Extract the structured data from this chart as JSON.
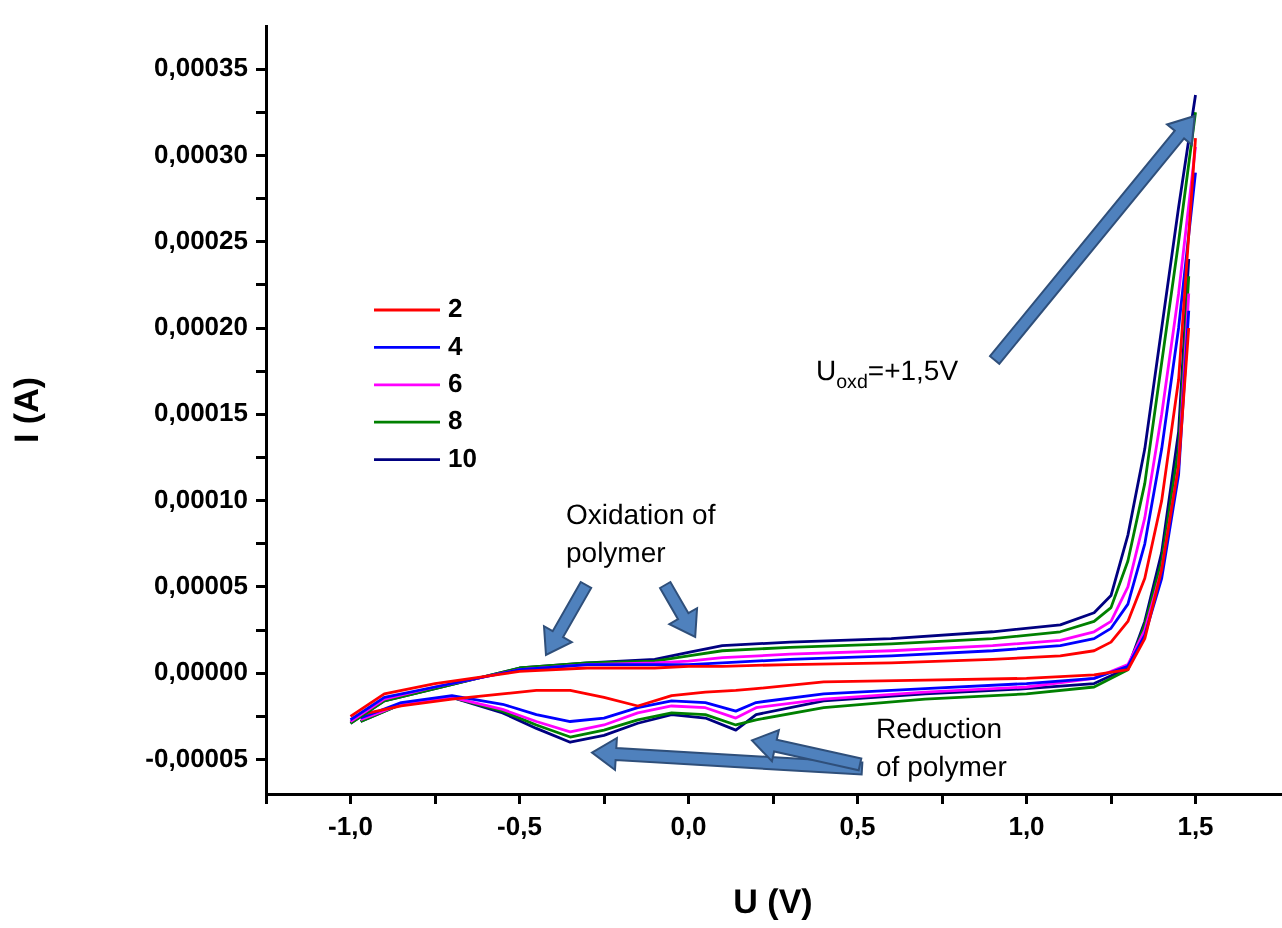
{
  "chart_data": {
    "type": "line",
    "xlabel": "U (V)",
    "ylabel": "I (A)",
    "annotations": [
      "Oxidation of polymer",
      "Reduction of polymer",
      "U$_{oxd}$=+1,5V"
    ],
    "xlim": [
      -1.25,
      1.75
    ],
    "xticks": [
      {
        "value": -1.25,
        "label": null
      },
      {
        "value": -1,
        "label": "-1,0"
      },
      {
        "value": -0.75,
        "label": null
      },
      {
        "value": -0.5,
        "label": "-0,5"
      },
      {
        "value": -0.25,
        "label": null
      },
      {
        "value": 0,
        "label": "0,0"
      },
      {
        "value": 0.25,
        "label": null
      },
      {
        "value": 0.5,
        "label": "0,5"
      },
      {
        "value": 0.75,
        "label": null
      },
      {
        "value": 1,
        "label": "1,0"
      },
      {
        "value": 1.25,
        "label": null
      },
      {
        "value": 1.5,
        "label": "1,5"
      }
    ],
    "ylim": [
      -7e-05,
      0.000375
    ],
    "yticks": [
      {
        "value": -5e-05,
        "label": "-0,00005"
      },
      {
        "value": -2.5e-05,
        "label": null
      },
      {
        "value": 0,
        "label": "0,00000"
      },
      {
        "value": 2.5e-05,
        "label": null
      },
      {
        "value": 5e-05,
        "label": "0,00005"
      },
      {
        "value": 7.5e-05,
        "label": null
      },
      {
        "value": 0.0001,
        "label": "0,00010"
      },
      {
        "value": 0.000125,
        "label": null
      },
      {
        "value": 0.00015,
        "label": "0,00015"
      },
      {
        "value": 0.000175,
        "label": null
      },
      {
        "value": 0.0002,
        "label": "0,00020"
      },
      {
        "value": 0.000225,
        "label": null
      },
      {
        "value": 0.00025,
        "label": "0,00025"
      },
      {
        "value": 0.000275,
        "label": null
      },
      {
        "value": 0.0003,
        "label": "0,00030"
      },
      {
        "value": 0.000325,
        "label": null
      },
      {
        "value": 0.00035,
        "label": "0,00035"
      }
    ],
    "grid": false,
    "legend": "left",
    "marker": "none",
    "line_style": "solid",
    "series": [
      {
        "name": "2",
        "color": "#ff0000",
        "x": [
          -1.0,
          -0.9,
          -0.75,
          -0.5,
          -0.3,
          -0.1,
          0.0,
          0.1,
          0.3,
          0.6,
          0.9,
          1.1,
          1.2,
          1.25,
          1.3,
          1.35,
          1.4,
          1.45,
          1.5
        ],
        "values": [
          -2.5e-05,
          -1.2e-05,
          -6e-06,
          1e-06,
          3e-06,
          3e-06,
          4e-06,
          4e-06,
          5e-06,
          6e-06,
          8e-06,
          1e-05,
          1.3e-05,
          1.8e-05,
          3e-05,
          5.5e-05,
          0.0001,
          0.00017,
          0.00031
        ]
      },
      {
        "name": "4",
        "color": "#0000ff",
        "x": [
          -1.0,
          -0.9,
          -0.75,
          -0.5,
          -0.3,
          -0.1,
          0.0,
          0.1,
          0.3,
          0.6,
          0.9,
          1.1,
          1.2,
          1.25,
          1.3,
          1.35,
          1.4,
          1.45,
          1.5
        ],
        "values": [
          -2.7e-05,
          -1.4e-05,
          -8e-06,
          2e-06,
          5e-06,
          5e-06,
          5e-06,
          6e-06,
          8e-06,
          1e-05,
          1.3e-05,
          1.6e-05,
          2e-05,
          2.6e-05,
          4e-05,
          7.5e-05,
          0.00013,
          0.0002,
          0.00029
        ]
      },
      {
        "name": "6",
        "color": "#ff00ff",
        "x": [
          -1.0,
          -0.9,
          -0.75,
          -0.5,
          -0.3,
          -0.1,
          0.0,
          0.1,
          0.3,
          0.6,
          0.9,
          1.1,
          1.2,
          1.25,
          1.3,
          1.35,
          1.4,
          1.45,
          1.5
        ],
        "values": [
          -2.8e-05,
          -1.5e-05,
          -8e-06,
          2e-06,
          5e-06,
          6e-06,
          7e-06,
          9e-06,
          1.1e-05,
          1.3e-05,
          1.6e-05,
          1.9e-05,
          2.4e-05,
          3e-05,
          5e-05,
          9e-05,
          0.00015,
          0.00022,
          0.000305
        ]
      },
      {
        "name": "8",
        "color": "#008000",
        "x": [
          -1.0,
          -0.9,
          -0.75,
          -0.5,
          -0.3,
          -0.1,
          0.0,
          0.1,
          0.3,
          0.6,
          0.9,
          1.1,
          1.2,
          1.25,
          1.3,
          1.35,
          1.4,
          1.45,
          1.5
        ],
        "values": [
          -2.9e-05,
          -1.6e-05,
          -9e-06,
          3e-06,
          6e-06,
          7e-06,
          1e-05,
          1.3e-05,
          1.5e-05,
          1.7e-05,
          2e-05,
          2.4e-05,
          3e-05,
          3.8e-05,
          6.5e-05,
          0.00011,
          0.00018,
          0.00025,
          0.000325
        ]
      },
      {
        "name": "10",
        "color": "#000080",
        "x": [
          -1.0,
          -0.9,
          -0.75,
          -0.5,
          -0.3,
          -0.1,
          0.0,
          0.1,
          0.3,
          0.6,
          0.9,
          1.1,
          1.2,
          1.25,
          1.3,
          1.35,
          1.4,
          1.45,
          1.5
        ],
        "values": [
          -2.9e-05,
          -1.6e-05,
          -9e-06,
          3e-06,
          6e-06,
          8e-06,
          1.2e-05,
          1.6e-05,
          1.8e-05,
          2e-05,
          2.4e-05,
          2.8e-05,
          3.5e-05,
          4.5e-05,
          8e-05,
          0.00013,
          0.0002,
          0.00027,
          0.000335
        ]
      },
      {
        "color": "#ff0000",
        "x": [
          -0.97,
          -0.85,
          -0.7,
          -0.55,
          -0.45,
          -0.35,
          -0.25,
          -0.15,
          -0.05,
          0.05,
          0.14,
          0.2,
          0.4,
          0.7,
          1.0,
          1.2,
          1.3,
          1.35,
          1.4,
          1.45,
          1.48
        ],
        "values": [
          -2.4e-05,
          -1.9e-05,
          -1.5e-05,
          -1.2e-05,
          -1e-05,
          -1e-05,
          -1.4e-05,
          -1.9e-05,
          -1.3e-05,
          -1.1e-05,
          -1e-05,
          -9e-06,
          -5e-06,
          -4e-06,
          -3e-06,
          -1e-06,
          2e-06,
          2e-05,
          6e-05,
          0.00012,
          0.0002
        ]
      },
      {
        "color": "#0000ff",
        "x": [
          -0.97,
          -0.85,
          -0.7,
          -0.55,
          -0.45,
          -0.35,
          -0.25,
          -0.15,
          -0.05,
          0.05,
          0.14,
          0.2,
          0.4,
          0.7,
          1.0,
          1.2,
          1.3,
          1.35,
          1.4,
          1.45,
          1.48
        ],
        "values": [
          -2.6e-05,
          -1.7e-05,
          -1.3e-05,
          -1.8e-05,
          -2.4e-05,
          -2.8e-05,
          -2.6e-05,
          -2e-05,
          -1.6e-05,
          -1.7e-05,
          -2.2e-05,
          -1.7e-05,
          -1.2e-05,
          -9e-06,
          -6e-06,
          -3e-06,
          4e-06,
          2.2e-05,
          5.5e-05,
          0.000115,
          0.00021
        ]
      },
      {
        "color": "#ff00ff",
        "x": [
          -0.97,
          -0.85,
          -0.7,
          -0.55,
          -0.45,
          -0.35,
          -0.25,
          -0.15,
          -0.05,
          0.05,
          0.14,
          0.2,
          0.4,
          0.7,
          1.0,
          1.2,
          1.3,
          1.35,
          1.4,
          1.45,
          1.48
        ],
        "values": [
          -2.7e-05,
          -1.8e-05,
          -1.4e-05,
          -2.1e-05,
          -2.8e-05,
          -3.4e-05,
          -3e-05,
          -2.3e-05,
          -1.9e-05,
          -2e-05,
          -2.6e-05,
          -2e-05,
          -1.5e-05,
          -1.1e-05,
          -8e-06,
          -3e-06,
          5e-06,
          2.5e-05,
          6e-05,
          0.00012,
          0.00022
        ]
      },
      {
        "color": "#008000",
        "x": [
          -0.97,
          -0.85,
          -0.7,
          -0.55,
          -0.45,
          -0.35,
          -0.25,
          -0.15,
          -0.05,
          0.05,
          0.14,
          0.2,
          0.4,
          0.7,
          1.0,
          1.2,
          1.3,
          1.35,
          1.4,
          1.45,
          1.48
        ],
        "values": [
          -2.8e-05,
          -1.8e-05,
          -1.4e-05,
          -2.2e-05,
          -3e-05,
          -3.7e-05,
          -3.3e-05,
          -2.7e-05,
          -2.3e-05,
          -2.4e-05,
          -3e-05,
          -2.7e-05,
          -2e-05,
          -1.5e-05,
          -1.2e-05,
          -8e-06,
          2e-06,
          2.8e-05,
          6.5e-05,
          0.00013,
          0.00023
        ]
      },
      {
        "color": "#000080",
        "x": [
          -0.97,
          -0.85,
          -0.7,
          -0.55,
          -0.45,
          -0.35,
          -0.25,
          -0.15,
          -0.05,
          0.05,
          0.14,
          0.2,
          0.4,
          0.7,
          1.0,
          1.2,
          1.3,
          1.35,
          1.4,
          1.45,
          1.48
        ],
        "values": [
          -2.8e-05,
          -1.8e-05,
          -1.4e-05,
          -2.3e-05,
          -3.2e-05,
          -4e-05,
          -3.6e-05,
          -2.9e-05,
          -2.4e-05,
          -2.6e-05,
          -3.3e-05,
          -2.4e-05,
          -1.6e-05,
          -1.2e-05,
          -9e-06,
          -6e-06,
          3e-06,
          3e-05,
          7e-05,
          0.00014,
          0.00024
        ]
      }
    ]
  }
}
